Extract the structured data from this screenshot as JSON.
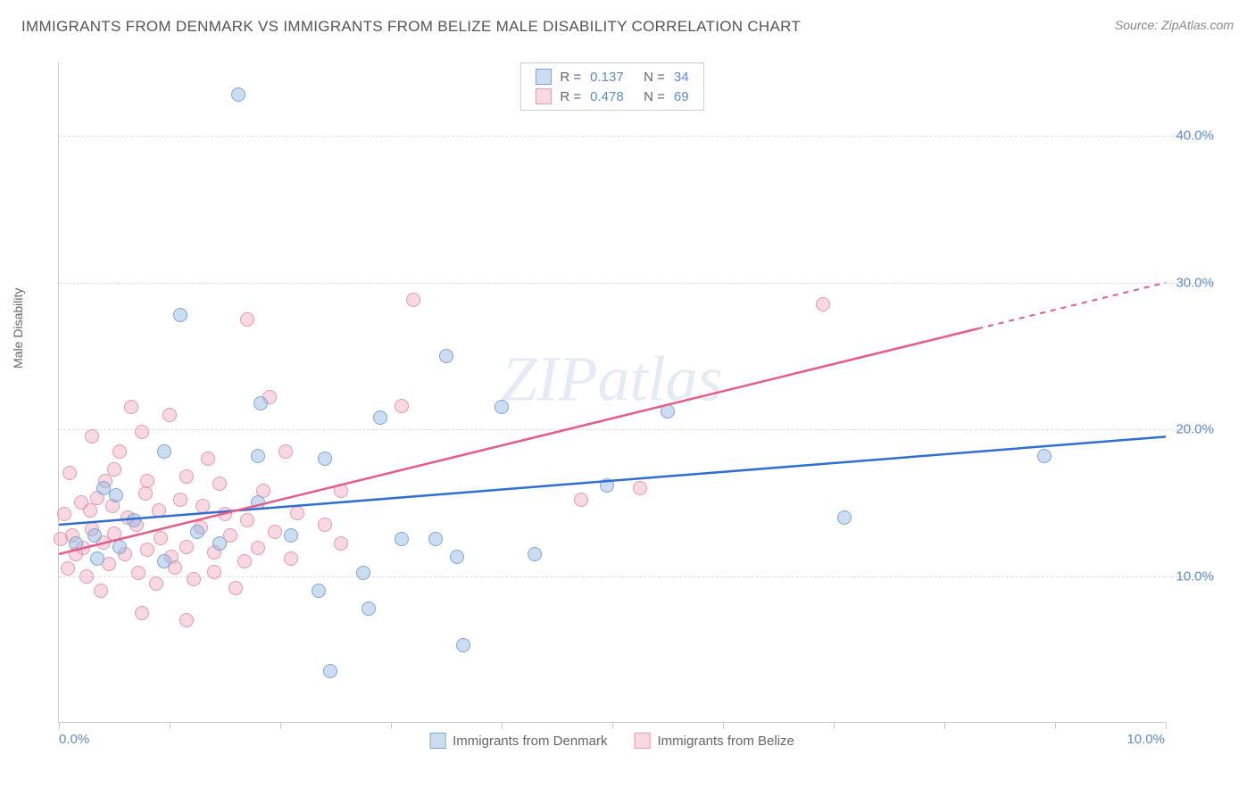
{
  "title": "IMMIGRANTS FROM DENMARK VS IMMIGRANTS FROM BELIZE MALE DISABILITY CORRELATION CHART",
  "source": "Source: ZipAtlas.com",
  "watermark": "ZIPatlas",
  "y_axis_label": "Male Disability",
  "chart": {
    "type": "scatter",
    "x_range": [
      0,
      10
    ],
    "y_range": [
      0,
      45
    ],
    "y_ticks": [
      10,
      20,
      30,
      40
    ],
    "y_tick_labels": [
      "10.0%",
      "20.0%",
      "30.0%",
      "40.0%"
    ],
    "x_ticks": [
      0,
      1,
      2,
      3,
      4,
      5,
      6,
      7,
      8,
      9,
      10
    ],
    "x_min_label": "0.0%",
    "x_max_label": "10.0%",
    "grid_color": "#dddddd",
    "axis_color": "#cccccc",
    "background": "#ffffff",
    "tick_label_color": "#5b8ad6",
    "tick_label_fontsize": 15
  },
  "series": [
    {
      "name": "Immigrants from Denmark",
      "fill": "rgba(141,179,226,0.45)",
      "stroke": "#7aa8d8",
      "trend_color": "#2f6fd0",
      "trend_start_y": 13.5,
      "trend_end_y": 19.5,
      "trend_x_start": 0,
      "trend_x_end": 10,
      "R": "0.137",
      "N": "34",
      "points": [
        [
          1.62,
          42.8
        ],
        [
          1.1,
          27.8
        ],
        [
          3.5,
          25.0
        ],
        [
          1.82,
          21.8
        ],
        [
          2.9,
          20.8
        ],
        [
          1.8,
          18.2
        ],
        [
          2.4,
          18.0
        ],
        [
          0.52,
          15.5
        ],
        [
          0.68,
          13.8
        ],
        [
          0.95,
          18.5
        ],
        [
          0.4,
          16.0
        ],
        [
          1.8,
          15.0
        ],
        [
          5.5,
          21.2
        ],
        [
          8.9,
          18.2
        ],
        [
          7.1,
          14.0
        ],
        [
          0.32,
          12.8
        ],
        [
          3.6,
          11.3
        ],
        [
          3.1,
          12.5
        ],
        [
          3.4,
          12.5
        ],
        [
          2.35,
          9.0
        ],
        [
          2.75,
          10.2
        ],
        [
          0.15,
          12.2
        ],
        [
          0.55,
          12.0
        ],
        [
          0.95,
          11.0
        ],
        [
          4.3,
          11.5
        ],
        [
          4.0,
          21.5
        ],
        [
          2.8,
          7.8
        ],
        [
          3.65,
          5.3
        ],
        [
          2.45,
          3.5
        ],
        [
          0.35,
          11.2
        ],
        [
          1.25,
          13.0
        ],
        [
          1.45,
          12.2
        ],
        [
          2.1,
          12.8
        ],
        [
          4.95,
          16.2
        ]
      ]
    },
    {
      "name": "Immigrants from Belize",
      "fill": "rgba(240,160,180,0.4)",
      "stroke": "#e898b0",
      "trend_color": "#e85a88",
      "trend_start_y": 11.5,
      "trend_end_y": 30.0,
      "trend_x_start": 0,
      "trend_x_end": 10,
      "trend_solid_end_x": 8.3,
      "R": "0.478",
      "N": "69",
      "points": [
        [
          3.2,
          28.8
        ],
        [
          6.9,
          28.5
        ],
        [
          1.7,
          27.5
        ],
        [
          0.65,
          21.5
        ],
        [
          1.9,
          22.2
        ],
        [
          3.1,
          21.6
        ],
        [
          0.3,
          19.5
        ],
        [
          0.75,
          19.8
        ],
        [
          0.1,
          17.0
        ],
        [
          0.5,
          17.3
        ],
        [
          0.8,
          16.5
        ],
        [
          1.15,
          16.8
        ],
        [
          1.45,
          16.3
        ],
        [
          2.05,
          18.5
        ],
        [
          2.55,
          15.8
        ],
        [
          0.05,
          14.2
        ],
        [
          0.2,
          15.0
        ],
        [
          0.35,
          15.3
        ],
        [
          0.48,
          14.8
        ],
        [
          0.62,
          14.0
        ],
        [
          0.78,
          15.6
        ],
        [
          0.9,
          14.5
        ],
        [
          1.1,
          15.2
        ],
        [
          1.3,
          14.8
        ],
        [
          1.5,
          14.2
        ],
        [
          1.7,
          13.8
        ],
        [
          1.85,
          15.8
        ],
        [
          2.15,
          14.3
        ],
        [
          2.4,
          13.5
        ],
        [
          0.02,
          12.5
        ],
        [
          0.12,
          12.8
        ],
        [
          0.22,
          11.9
        ],
        [
          0.3,
          13.2
        ],
        [
          0.4,
          12.3
        ],
        [
          0.5,
          12.9
        ],
        [
          0.6,
          11.5
        ],
        [
          0.7,
          13.5
        ],
        [
          0.8,
          11.8
        ],
        [
          0.92,
          12.6
        ],
        [
          1.02,
          11.3
        ],
        [
          1.15,
          12.0
        ],
        [
          1.28,
          13.3
        ],
        [
          1.4,
          11.6
        ],
        [
          1.55,
          12.8
        ],
        [
          1.68,
          11.0
        ],
        [
          1.8,
          11.9
        ],
        [
          1.95,
          13.0
        ],
        [
          2.1,
          11.2
        ],
        [
          5.25,
          16.0
        ],
        [
          4.72,
          15.2
        ],
        [
          0.08,
          10.5
        ],
        [
          0.25,
          10.0
        ],
        [
          0.45,
          10.8
        ],
        [
          0.72,
          10.2
        ],
        [
          0.88,
          9.5
        ],
        [
          1.05,
          10.6
        ],
        [
          1.22,
          9.8
        ],
        [
          1.4,
          10.3
        ],
        [
          1.6,
          9.2
        ],
        [
          0.75,
          7.5
        ],
        [
          1.15,
          7.0
        ],
        [
          0.38,
          9.0
        ],
        [
          0.15,
          11.5
        ],
        [
          0.55,
          18.5
        ],
        [
          1.0,
          21.0
        ],
        [
          0.28,
          14.5
        ],
        [
          0.42,
          16.5
        ],
        [
          1.35,
          18.0
        ],
        [
          2.55,
          12.2
        ]
      ]
    }
  ],
  "stats_box": {
    "label_R": "R",
    "label_N": "N",
    "eq": "="
  }
}
